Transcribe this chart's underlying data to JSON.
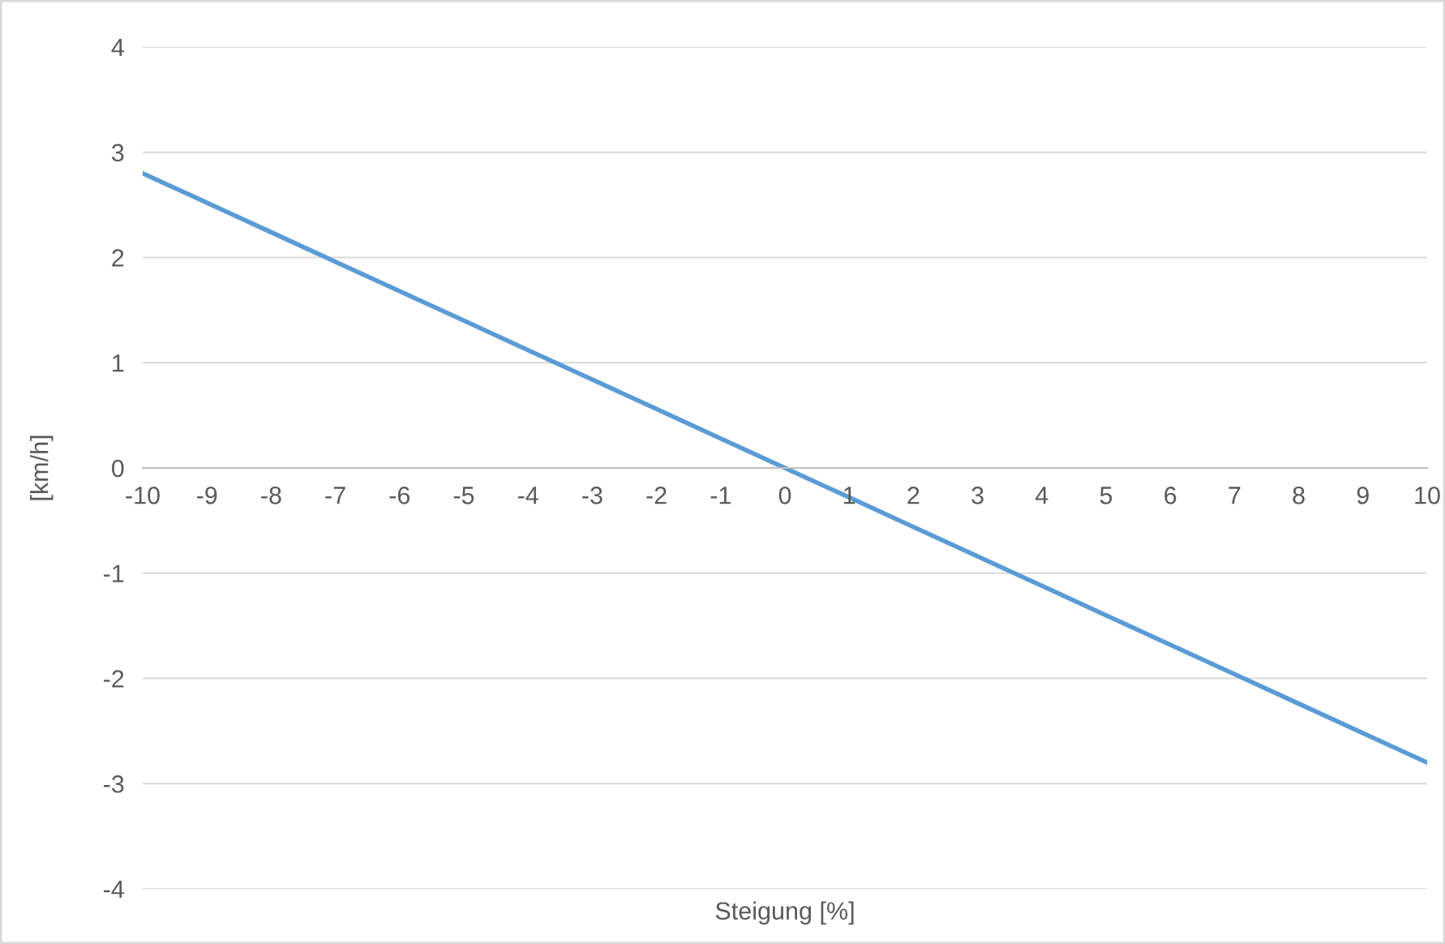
{
  "chart_data": {
    "type": "line",
    "xlabel": "Steigung [%]",
    "ylabel": "[km/h]",
    "categories": [
      "-10",
      "-9",
      "-8",
      "-7",
      "-6",
      "-5",
      "-4",
      "-3",
      "-2",
      "-1",
      "0",
      "1",
      "2",
      "3",
      "4",
      "5",
      "6",
      "7",
      "8",
      "9",
      "10"
    ],
    "series": [
      {
        "color": "#5b9bd5",
        "values": [
          2.8,
          2.52,
          2.24,
          1.96,
          1.68,
          1.4,
          1.12,
          0.84,
          0.56,
          0.28,
          0,
          -0.28,
          -0.56,
          -0.84,
          -1.12,
          -1.4,
          -1.68,
          -1.96,
          -2.24,
          -2.52,
          -2.8
        ]
      }
    ],
    "ylim": [
      -4,
      4
    ],
    "yticks": [
      -4,
      -3,
      -2,
      -1,
      0,
      1,
      2,
      3,
      4
    ],
    "grid": "y",
    "legend": false,
    "marker": "none",
    "line_style": "solid"
  }
}
